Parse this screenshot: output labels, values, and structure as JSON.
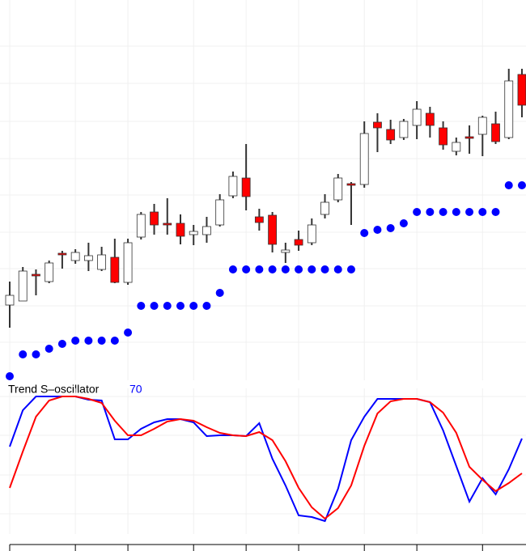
{
  "chart_data": [
    {
      "type": "candlestick",
      "open": [
        103,
        108,
        141,
        132,
        167,
        158,
        158,
        147,
        162,
        131,
        187,
        218,
        204,
        204,
        190,
        190,
        202,
        238,
        260,
        212,
        214,
        168,
        184,
        180,
        215,
        233,
        253,
        252,
        329,
        320,
        310,
        325,
        340,
        322,
        293,
        311,
        314,
        327,
        310,
        388
      ],
      "close": [
        115,
        145,
        139,
        155,
        165,
        168,
        164,
        165,
        131,
        180,
        215,
        202,
        202,
        188,
        194,
        200,
        233,
        262,
        237,
        205,
        178,
        171,
        177,
        202,
        230,
        260,
        251,
        315,
        322,
        307,
        330,
        345,
        325,
        301,
        304,
        309,
        335,
        305,
        380,
        350
      ],
      "high": [
        132,
        150,
        147,
        158,
        170,
        172,
        180,
        175,
        185,
        185,
        218,
        228,
        235,
        215,
        202,
        212,
        240,
        268,
        302,
        222,
        218,
        180,
        195,
        210,
        240,
        265,
        255,
        330,
        340,
        332,
        333,
        355,
        348,
        330,
        310,
        325,
        337,
        342,
        395,
        395
      ],
      "low": [
        75,
        108,
        115,
        130,
        148,
        154,
        145,
        145,
        130,
        128,
        184,
        190,
        190,
        178,
        177,
        180,
        200,
        235,
        220,
        195,
        168,
        155,
        170,
        177,
        210,
        230,
        202,
        248,
        292,
        302,
        307,
        308,
        310,
        295,
        288,
        290,
        287,
        302,
        308,
        335
      ],
      "up_color": "#ffffff",
      "down_color": "#ff0000",
      "dots": {
        "color": "#0000ff",
        "values": [
          15,
          42,
          42,
          49,
          55,
          59,
          59,
          59,
          59,
          69,
          102,
          102,
          102,
          102,
          102,
          102,
          118,
          147,
          147,
          147,
          147,
          147,
          147,
          147,
          147,
          147,
          147,
          192,
          196,
          198,
          204,
          218,
          218,
          218,
          218,
          218,
          218,
          218,
          251,
          251
        ]
      },
      "ylim": [
        10,
        480
      ],
      "yticks": [
        57,
        102,
        148,
        193,
        239,
        284,
        330,
        377,
        423
      ],
      "grid": true
    },
    {
      "type": "line",
      "title": "Trend S–oscillator",
      "annotation": "70",
      "annotation_color": "#0000ff",
      "series": [
        {
          "color": "#0000ff",
          "values": [
            128,
            173,
            190,
            190,
            190,
            190,
            186,
            185,
            137,
            137,
            150,
            158,
            162,
            162,
            158,
            141,
            142,
            142,
            141,
            157,
            113,
            80,
            43,
            41,
            36,
            76,
            136,
            165,
            187,
            187,
            187,
            187,
            183,
            148,
            104,
            60,
            89,
            69,
            100,
            138
          ]
        },
        {
          "color": "#ff0000",
          "values": [
            77,
            122,
            165,
            185,
            190,
            190,
            187,
            182,
            160,
            142,
            142,
            150,
            159,
            162,
            160,
            152,
            145,
            142,
            141,
            146,
            136,
            110,
            77,
            53,
            39,
            52,
            80,
            129,
            169,
            184,
            187,
            187,
            183,
            170,
            145,
            103,
            87,
            73,
            83,
            95
          ]
        }
      ],
      "ylim": [
        20,
        200
      ],
      "yticks": [
        45,
        93,
        142,
        190
      ],
      "xticks": [
        0,
        5,
        9,
        14,
        18,
        22,
        27,
        31,
        36
      ],
      "grid": true
    }
  ]
}
